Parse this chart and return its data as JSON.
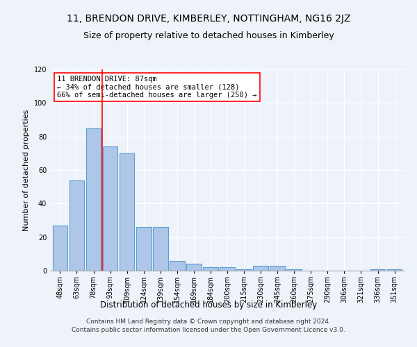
{
  "title": "11, BRENDON DRIVE, KIMBERLEY, NOTTINGHAM, NG16 2JZ",
  "subtitle": "Size of property relative to detached houses in Kimberley",
  "xlabel": "Distribution of detached houses by size in Kimberley",
  "ylabel": "Number of detached properties",
  "categories": [
    "48sqm",
    "63sqm",
    "78sqm",
    "93sqm",
    "109sqm",
    "124sqm",
    "139sqm",
    "154sqm",
    "169sqm",
    "184sqm",
    "200sqm",
    "215sqm",
    "230sqm",
    "245sqm",
    "260sqm",
    "275sqm",
    "290sqm",
    "306sqm",
    "321sqm",
    "336sqm",
    "351sqm"
  ],
  "values": [
    27,
    54,
    85,
    74,
    70,
    26,
    26,
    6,
    4,
    2,
    2,
    1,
    3,
    3,
    1,
    0,
    0,
    0,
    0,
    1,
    1
  ],
  "bar_color": "#aec6e8",
  "bar_edge_color": "#5a9fd4",
  "ylim": [
    0,
    120
  ],
  "yticks": [
    0,
    20,
    40,
    60,
    80,
    100,
    120
  ],
  "annotation_box_text": "11 BRENDON DRIVE: 87sqm\n← 34% of detached houses are smaller (128)\n66% of semi-detached houses are larger (250) →",
  "vline_x": 2.5,
  "footer_line1": "Contains HM Land Registry data © Crown copyright and database right 2024.",
  "footer_line2": "Contains public sector information licensed under the Open Government Licence v3.0.",
  "bg_color": "#eef2f9",
  "plot_bg_color": "#eef2f9",
  "title_fontsize": 10,
  "subtitle_fontsize": 9,
  "annotation_fontsize": 7.5,
  "xlabel_fontsize": 8.5,
  "ylabel_fontsize": 8,
  "footer_fontsize": 6.5,
  "tick_fontsize": 7
}
